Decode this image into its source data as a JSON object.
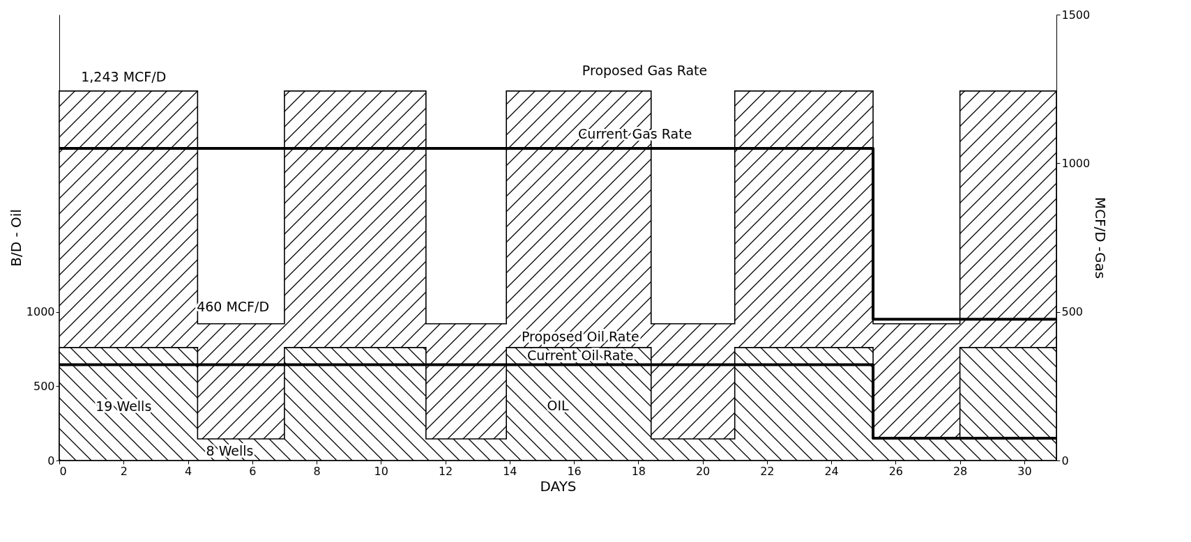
{
  "chart_data": {
    "type": "step",
    "xlabel": "DAYS",
    "ylabel": "B/D - Oil",
    "y2label": "MCF/D -Gas",
    "xlim": [
      0,
      31
    ],
    "xticks": [
      0,
      2,
      4,
      6,
      8,
      10,
      12,
      14,
      16,
      18,
      20,
      22,
      24,
      26,
      28,
      30
    ],
    "ylim": [
      0,
      3000
    ],
    "yticks": [
      0,
      500,
      1000
    ],
    "y2lim": [
      0,
      1500
    ],
    "y2ticks": [
      0,
      500,
      1000,
      1500
    ],
    "grid": false,
    "series": [
      {
        "name": "Proposed Gas Rate",
        "type": "area",
        "axis": "y2",
        "color": "#000000",
        "x": [
          0,
          4.3,
          7,
          11.4,
          13.9,
          18.4,
          21,
          25.3,
          28,
          31
        ],
        "values": [
          1243,
          460,
          1243,
          460,
          1243,
          460,
          1243,
          460,
          1243,
          1243
        ]
      },
      {
        "name": "Current Gas Rate",
        "axis": "y2",
        "color": "#000000",
        "x": [
          0,
          25.3,
          31
        ],
        "values": [
          1050,
          475,
          475
        ]
      },
      {
        "name": "Proposed Oil Rate",
        "type": "area",
        "color": "#000000",
        "x": [
          0,
          4.3,
          7,
          11.4,
          13.9,
          18.4,
          21,
          25.3,
          28,
          31
        ],
        "values": [
          760,
          145,
          760,
          145,
          760,
          145,
          760,
          145,
          760,
          760
        ]
      },
      {
        "name": "Current Oil Rate",
        "color": "#000000",
        "x": [
          0,
          25.3,
          31
        ],
        "values": [
          645,
          150,
          150
        ]
      }
    ],
    "annotations": [
      "1,243 MCF/D",
      "460 MCF/D",
      "19 Wells",
      "8 Wells",
      "OIL"
    ]
  }
}
